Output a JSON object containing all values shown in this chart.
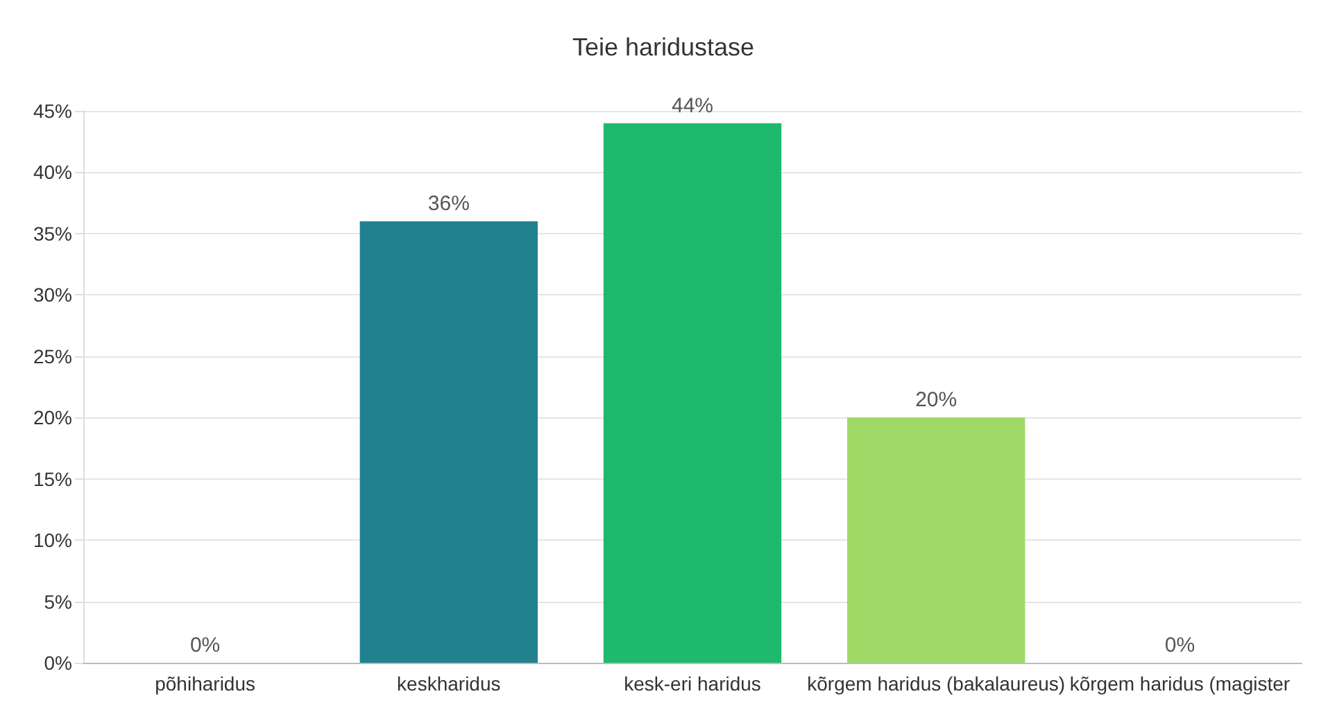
{
  "chart_data": {
    "type": "bar",
    "title": "Teie haridustase",
    "categories": [
      "põhiharidus",
      "keskharidus",
      "kesk-eri haridus",
      "kõrgem haridus (bakalaureus)",
      "kõrgem haridus (magister"
    ],
    "values": [
      0,
      36,
      44,
      20,
      0
    ],
    "value_labels": [
      "0%",
      "36%",
      "44%",
      "20%",
      "0%"
    ],
    "colors": [
      "#3d6aa8",
      "#21818f",
      "#1fb96d",
      "#a0d865",
      "#e8e85c"
    ],
    "ylim": [
      0,
      45
    ],
    "yticks": [
      {
        "value": 0,
        "label": "0%"
      },
      {
        "value": 5,
        "label": "5%"
      },
      {
        "value": 10,
        "label": "10%"
      },
      {
        "value": 15,
        "label": "15%"
      },
      {
        "value": 20,
        "label": "20%"
      },
      {
        "value": 25,
        "label": "25%"
      },
      {
        "value": 30,
        "label": "30%"
      },
      {
        "value": 35,
        "label": "35%"
      },
      {
        "value": 40,
        "label": "40%"
      },
      {
        "value": 45,
        "label": "45%"
      }
    ],
    "grid": "y"
  }
}
